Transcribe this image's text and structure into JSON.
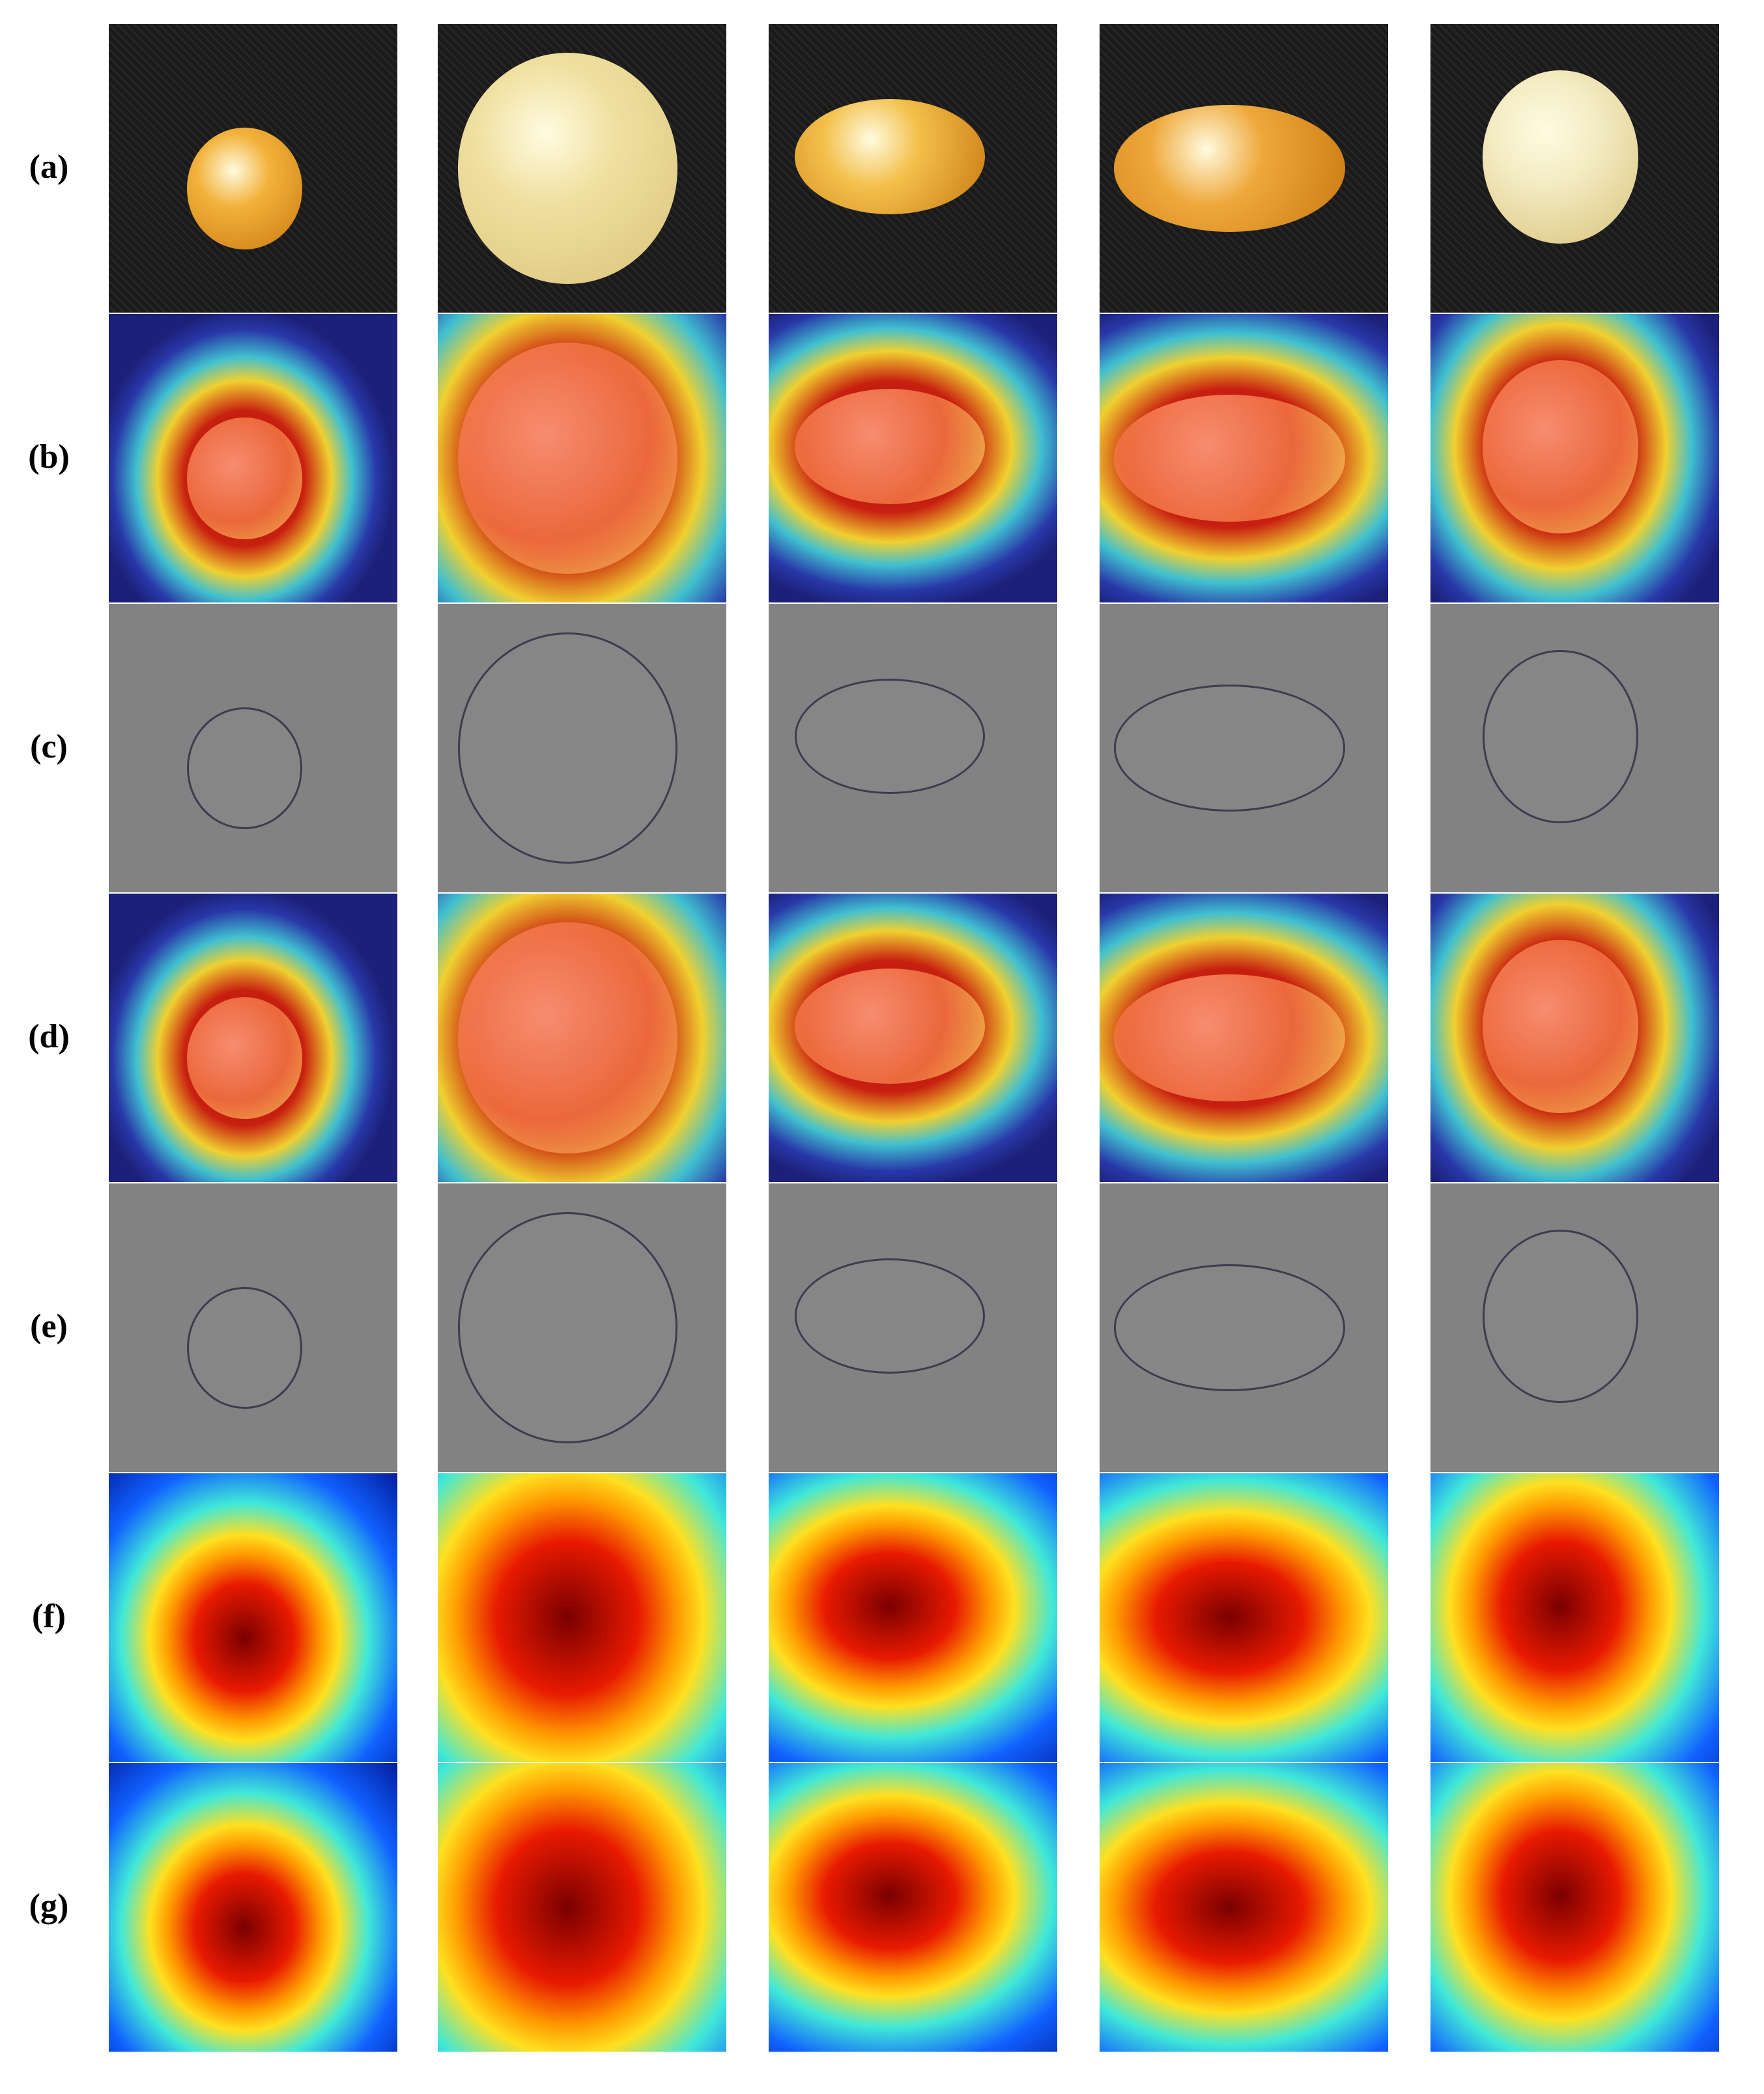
{
  "figure": {
    "rows": [
      {
        "label": "(a)"
      },
      {
        "label": "(b)"
      },
      {
        "label": "(c)"
      },
      {
        "label": "(d)"
      },
      {
        "label": "(e)"
      },
      {
        "label": "(f)"
      },
      {
        "label": "(g)"
      }
    ]
  }
}
